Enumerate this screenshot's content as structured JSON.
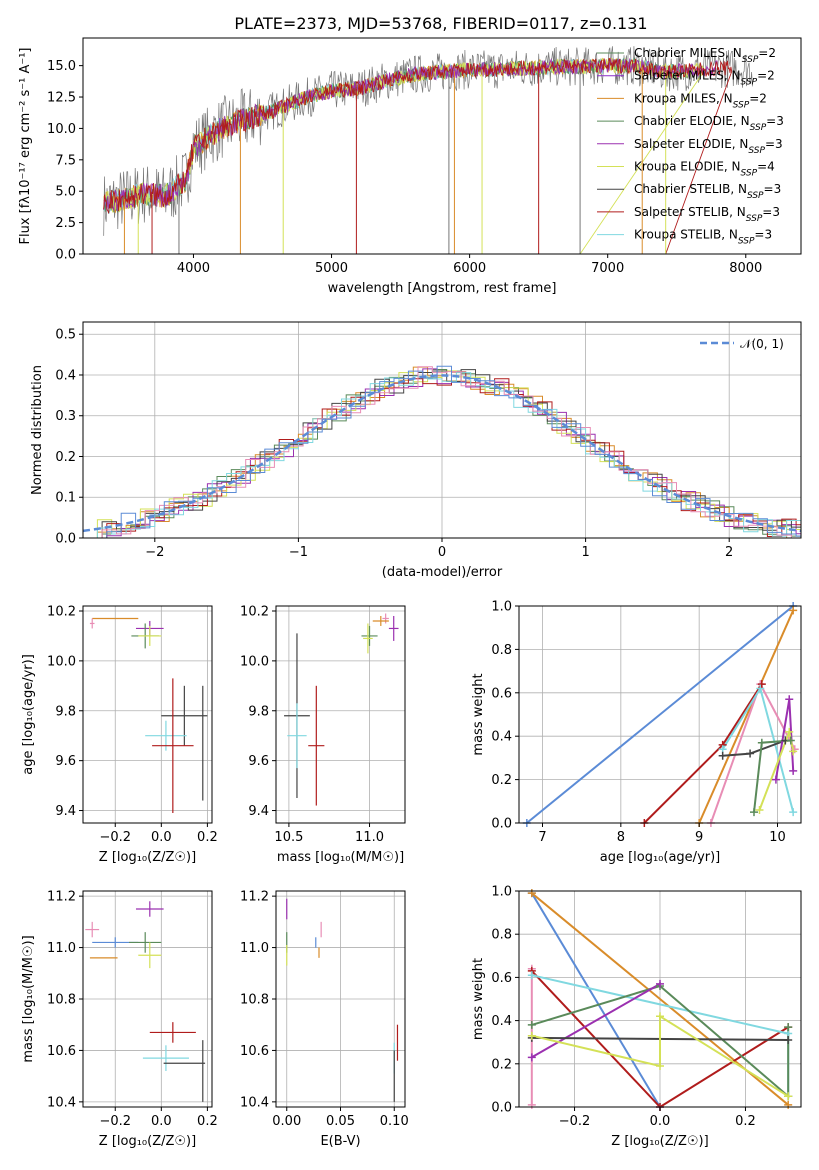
{
  "figure_title": "PLATE=2373, MJD=53768, FIBERID=0117, z=0.131",
  "models": [
    {
      "label": "Chabrier MILES, N",
      "nssp": "2",
      "color": "#5a8a5a"
    },
    {
      "label": "Salpeter MILES, N",
      "nssp": "2",
      "color": "#8b2fc9"
    },
    {
      "label": "Kroupa MILES, N",
      "nssp": "2",
      "color": "#d98c2a"
    },
    {
      "label": "Chabrier ELODIE, N",
      "nssp": "3",
      "color": "#5a8a5a"
    },
    {
      "label": "Salpeter ELODIE, N",
      "nssp": "3",
      "color": "#9b30b0"
    },
    {
      "label": "Kroupa ELODIE, N",
      "nssp": "4",
      "color": "#d4e157"
    },
    {
      "label": "Chabrier STELIB, N",
      "nssp": "3",
      "color": "#444444"
    },
    {
      "label": "Salpeter STELIB, N",
      "nssp": "3",
      "color": "#b01c1c"
    },
    {
      "label": "Kroupa STELIB, N",
      "nssp": "3",
      "color": "#80d8e0"
    }
  ],
  "nssp_sub": "SSP",
  "nssp_eq": "=",
  "chart_data": [
    {
      "id": "spectrum",
      "type": "line",
      "xlabel": "wavelength [Angstrom, rest frame]",
      "ylabel": "Flux [fλ10⁻¹⁷ erg cm⁻² s⁻¹ A⁻¹]",
      "xlim": [
        3200,
        8400
      ],
      "ylim": [
        0,
        17.2
      ],
      "xticks": [
        4000,
        5000,
        6000,
        7000,
        8000
      ],
      "yticks": [
        0.0,
        2.5,
        5.0,
        7.5,
        10.0,
        12.5,
        15.0
      ],
      "continuum_x": [
        3350,
        3500,
        3650,
        3800,
        3950,
        4000,
        4200,
        4400,
        4600,
        4800,
        5000,
        5200,
        5400,
        5600,
        5800,
        6000,
        6200,
        6400,
        6600,
        6800,
        7000,
        7200,
        7400,
        7600,
        7800
      ],
      "continuum_y": [
        4.0,
        4.4,
        4.8,
        4.6,
        6.0,
        8.5,
        10.0,
        10.8,
        11.5,
        12.4,
        13.0,
        13.2,
        13.8,
        14.3,
        14.5,
        14.7,
        14.7,
        14.8,
        14.9,
        14.9,
        15.0,
        15.0,
        14.5,
        14.6,
        14.8
      ]
    },
    {
      "id": "residuals",
      "type": "step",
      "xlabel": "(data-model)/error",
      "ylabel": "Normed distribution",
      "xlim": [
        -2.5,
        2.5
      ],
      "ylim": [
        0,
        0.53
      ],
      "xticks": [
        -2,
        -1,
        0,
        1,
        2
      ],
      "yticks": [
        0.0,
        0.1,
        0.2,
        0.3,
        0.4,
        0.5
      ],
      "grid": true,
      "legend": "𝒩(0, 1)",
      "gaussian_color": "#5b8bd6"
    },
    {
      "id": "age_vs_Z",
      "type": "errorbar",
      "xlabel": "Z [log₁₀(Z/Z☉)]",
      "ylabel": "age  [log₁₀(age/yr)]",
      "xlim": [
        -0.34,
        0.22
      ],
      "ylim": [
        9.35,
        10.22
      ],
      "xticks": [
        -0.2,
        0.0,
        0.2
      ],
      "yticks": [
        9.4,
        9.6,
        9.8,
        10.0,
        10.2
      ],
      "grid": true,
      "points": [
        {
          "x": -0.2,
          "y": 10.17,
          "xerr": 0.1,
          "yerr": 0.0,
          "color": "#d98c2a"
        },
        {
          "x": -0.3,
          "y": 10.15,
          "xerr": 0.01,
          "yerr": 0.02,
          "color": "#e88db5"
        },
        {
          "x": -0.05,
          "y": 10.13,
          "xerr": 0.06,
          "yerr": 0.03,
          "color": "#9b30b0"
        },
        {
          "x": -0.07,
          "y": 10.1,
          "xerr": 0.06,
          "yerr": 0.05,
          "color": "#5a8a5a"
        },
        {
          "x": -0.05,
          "y": 10.1,
          "xerr": 0.05,
          "yerr": 0.04,
          "color": "#d4e157"
        },
        {
          "x": 0.1,
          "y": 9.78,
          "xerr": 0.1,
          "yerr": 0.12,
          "color": "#444444"
        },
        {
          "x": 0.02,
          "y": 9.7,
          "xerr": 0.09,
          "yerr": 0.06,
          "color": "#80d8e0"
        },
        {
          "x": 0.05,
          "y": 9.66,
          "xerr": 0.09,
          "yerr": 0.27,
          "color": "#b01c1c"
        },
        {
          "x": 0.18,
          "y": 9.67,
          "xerr": 0.0,
          "yerr": 0.23,
          "color": "#444444"
        }
      ]
    },
    {
      "id": "age_vs_mass",
      "type": "errorbar",
      "xlabel": "mass [log₁₀(M/M☉)]",
      "ylabel": "",
      "xlim": [
        10.42,
        11.22
      ],
      "ylim": [
        9.35,
        10.22
      ],
      "xticks": [
        10.5,
        11.0
      ],
      "yticks": [
        9.4,
        9.6,
        9.8,
        10.0,
        10.2
      ],
      "grid": true,
      "points": [
        {
          "x": 11.1,
          "y": 10.17,
          "xerr": 0.02,
          "yerr": 0.02,
          "color": "#e88db5"
        },
        {
          "x": 11.07,
          "y": 10.16,
          "xerr": 0.05,
          "yerr": 0.02,
          "color": "#d98c2a"
        },
        {
          "x": 11.15,
          "y": 10.13,
          "xerr": 0.03,
          "yerr": 0.05,
          "color": "#9b30b0"
        },
        {
          "x": 11.0,
          "y": 10.1,
          "xerr": 0.05,
          "yerr": 0.04,
          "color": "#5a8a5a"
        },
        {
          "x": 10.99,
          "y": 10.09,
          "xerr": 0.03,
          "yerr": 0.06,
          "color": "#d4e157"
        },
        {
          "x": 10.55,
          "y": 9.78,
          "xerr": 0.08,
          "yerr": 0.33,
          "color": "#444444"
        },
        {
          "x": 10.55,
          "y": 9.7,
          "xerr": 0.06,
          "yerr": 0.13,
          "color": "#80d8e0"
        },
        {
          "x": 10.67,
          "y": 9.66,
          "xerr": 0.05,
          "yerr": 0.24,
          "color": "#b01c1c"
        }
      ]
    },
    {
      "id": "massweight_vs_age",
      "type": "line",
      "xlabel": "age  [log₁₀(age/yr)]",
      "ylabel": "mass weight",
      "xlim": [
        6.7,
        10.3
      ],
      "ylim": [
        0,
        1.0
      ],
      "xticks": [
        7,
        8,
        9,
        10
      ],
      "yticks": [
        0.0,
        0.2,
        0.4,
        0.6,
        0.8,
        1.0
      ],
      "grid": true,
      "series": [
        {
          "color": "#5b8bd6",
          "x": [
            6.8,
            10.2
          ],
          "y": [
            0.0,
            1.0
          ]
        },
        {
          "color": "#d98c2a",
          "x": [
            9.0,
            10.2
          ],
          "y": [
            0.0,
            0.98
          ]
        },
        {
          "color": "#e88db5",
          "x": [
            9.15,
            9.78,
            10.22
          ],
          "y": [
            0.0,
            0.64,
            0.34
          ]
        },
        {
          "color": "#b01c1c",
          "x": [
            8.3,
            9.3,
            9.8
          ],
          "y": [
            0.0,
            0.36,
            0.64
          ]
        },
        {
          "color": "#80d8e0",
          "x": [
            9.3,
            9.78,
            10.2
          ],
          "y": [
            0.34,
            0.62,
            0.05
          ]
        },
        {
          "color": "#444444",
          "x": [
            9.3,
            9.65,
            10.1
          ],
          "y": [
            0.31,
            0.32,
            0.38
          ]
        },
        {
          "color": "#5a8a5a",
          "x": [
            9.7,
            9.8,
            10.17
          ],
          "y": [
            0.05,
            0.37,
            0.38
          ]
        },
        {
          "color": "#9b30b0",
          "x": [
            9.98,
            10.15,
            10.2
          ],
          "y": [
            0.2,
            0.57,
            0.24
          ]
        },
        {
          "color": "#d4e157",
          "x": [
            9.77,
            10.15,
            10.2
          ],
          "y": [
            0.06,
            0.42,
            0.33
          ]
        }
      ]
    },
    {
      "id": "mass_vs_Z",
      "type": "errorbar",
      "xlabel": "Z [log₁₀(Z/Z☉)]",
      "ylabel": "mass [log₁₀(M/M☉)]",
      "xlim": [
        -0.34,
        0.22
      ],
      "ylim": [
        10.38,
        11.22
      ],
      "xticks": [
        -0.2,
        0.0,
        0.2
      ],
      "yticks": [
        10.4,
        10.6,
        10.8,
        11.0,
        11.2
      ],
      "grid": true,
      "points": [
        {
          "x": -0.05,
          "y": 11.15,
          "xerr": 0.06,
          "yerr": 0.03,
          "color": "#9b30b0"
        },
        {
          "x": -0.3,
          "y": 11.07,
          "xerr": 0.03,
          "yerr": 0.03,
          "color": "#e88db5"
        },
        {
          "x": -0.2,
          "y": 11.02,
          "xerr": 0.1,
          "yerr": 0.02,
          "color": "#5b8bd6"
        },
        {
          "x": -0.07,
          "y": 11.02,
          "xerr": 0.07,
          "yerr": 0.04,
          "color": "#5a8a5a"
        },
        {
          "x": -0.25,
          "y": 10.96,
          "xerr": 0.06,
          "yerr": 0.0,
          "color": "#d98c2a"
        },
        {
          "x": -0.05,
          "y": 10.97,
          "xerr": 0.05,
          "yerr": 0.05,
          "color": "#d4e157"
        },
        {
          "x": 0.05,
          "y": 10.67,
          "xerr": 0.1,
          "yerr": 0.04,
          "color": "#b01c1c"
        },
        {
          "x": 0.02,
          "y": 10.57,
          "xerr": 0.1,
          "yerr": 0.05,
          "color": "#80d8e0"
        },
        {
          "x": 0.1,
          "y": 10.55,
          "xerr": 0.09,
          "yerr": 0.0,
          "color": "#444444"
        },
        {
          "x": 0.18,
          "y": 10.52,
          "xerr": 0.0,
          "yerr": 0.12,
          "color": "#444444"
        }
      ]
    },
    {
      "id": "mass_vs_EBV",
      "type": "errorbar",
      "xlabel": "E(B-V)",
      "ylabel": "",
      "xlim": [
        -0.01,
        0.11
      ],
      "ylim": [
        10.38,
        11.22
      ],
      "xticks": [
        0.0,
        0.05,
        0.1
      ],
      "yticks": [
        10.4,
        10.6,
        10.8,
        11.0,
        11.2
      ],
      "grid": true,
      "points": [
        {
          "x": 0.0,
          "y": 11.15,
          "xerr": 0.0,
          "yerr": 0.04,
          "color": "#9b30b0"
        },
        {
          "x": 0.0,
          "y": 11.02,
          "xerr": 0.0,
          "yerr": 0.04,
          "color": "#5a8a5a"
        },
        {
          "x": 0.0,
          "y": 10.97,
          "xerr": 0.0,
          "yerr": 0.04,
          "color": "#d4e157"
        },
        {
          "x": 0.032,
          "y": 11.07,
          "xerr": 0.0,
          "yerr": 0.03,
          "color": "#e88db5"
        },
        {
          "x": 0.027,
          "y": 11.02,
          "xerr": 0.0,
          "yerr": 0.02,
          "color": "#5b8bd6"
        },
        {
          "x": 0.03,
          "y": 10.98,
          "xerr": 0.0,
          "yerr": 0.02,
          "color": "#d98c2a"
        },
        {
          "x": 0.1,
          "y": 10.57,
          "xerr": 0.0,
          "yerr": 0.06,
          "color": "#80d8e0"
        },
        {
          "x": 0.103,
          "y": 10.63,
          "xerr": 0.0,
          "yerr": 0.07,
          "color": "#b01c1c"
        },
        {
          "x": 0.1,
          "y": 10.5,
          "xerr": 0.0,
          "yerr": 0.1,
          "color": "#444444"
        }
      ]
    },
    {
      "id": "massweight_vs_Z",
      "type": "line",
      "xlabel": "Z [log₁₀(Z/Z☉)]",
      "ylabel": "mass weight",
      "xlim": [
        -0.33,
        0.33
      ],
      "ylim": [
        0,
        1.0
      ],
      "xticks": [
        -0.2,
        0.0,
        0.2
      ],
      "yticks": [
        0.0,
        0.2,
        0.4,
        0.6,
        0.8,
        1.0
      ],
      "grid": true,
      "series": [
        {
          "color": "#5b8bd6",
          "x": [
            -0.3,
            0.0
          ],
          "y": [
            0.99,
            0.0
          ]
        },
        {
          "color": "#d98c2a",
          "x": [
            -0.3,
            0.3
          ],
          "y": [
            0.99,
            0.01
          ]
        },
        {
          "color": "#e88db5",
          "x": [
            -0.3,
            -0.3
          ],
          "y": [
            0.64,
            0.01
          ]
        },
        {
          "color": "#b01c1c",
          "x": [
            -0.3,
            0.0,
            0.3
          ],
          "y": [
            0.63,
            0.0,
            0.37
          ]
        },
        {
          "color": "#80d8e0",
          "x": [
            -0.3,
            0.3,
            0.3
          ],
          "y": [
            0.61,
            0.34,
            0.05
          ]
        },
        {
          "color": "#5a8a5a",
          "x": [
            -0.3,
            0.0,
            0.3,
            0.3
          ],
          "y": [
            0.38,
            0.56,
            0.05,
            0.37
          ]
        },
        {
          "color": "#9b30b0",
          "x": [
            -0.3,
            0.0
          ],
          "y": [
            0.23,
            0.57
          ]
        },
        {
          "color": "#444444",
          "x": [
            -0.3,
            0.3
          ],
          "y": [
            0.32,
            0.31
          ]
        },
        {
          "color": "#d4e157",
          "x": [
            -0.3,
            0.0,
            0.0,
            0.3
          ],
          "y": [
            0.33,
            0.19,
            0.42,
            0.05
          ]
        }
      ]
    }
  ]
}
